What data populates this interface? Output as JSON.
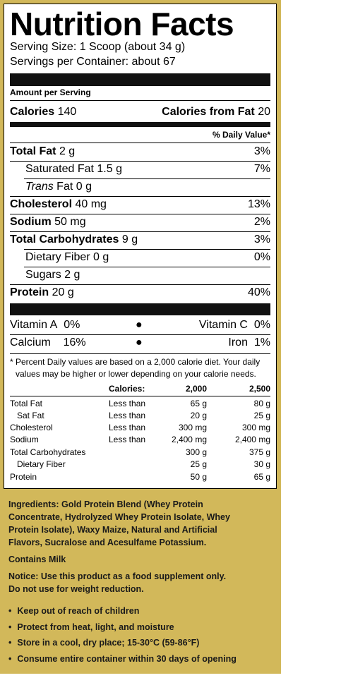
{
  "title": "Nutrition Facts",
  "serving_size": "Serving Size: 1 Scoop (about 34 g)",
  "servings_per_container": "Servings per Container: about 67",
  "amount_per_serving": "Amount per Serving",
  "calories": {
    "label": "Calories",
    "value": "140"
  },
  "calories_from_fat": {
    "label": "Calories from Fat",
    "value": "20"
  },
  "daily_value_header": "% Daily Value*",
  "nutrients": [
    {
      "name": "Total Fat",
      "amount": "2 g",
      "dv": "3%"
    },
    {
      "name": "Saturated Fat",
      "amount": "1.5 g",
      "dv": "7%"
    },
    {
      "name": "Trans",
      "name_suffix": "Fat 0 g",
      "amount": "",
      "dv": ""
    },
    {
      "name": "Cholesterol",
      "amount": "40 mg",
      "dv": "13%"
    },
    {
      "name": "Sodium",
      "amount": "50 mg",
      "dv": "2%"
    },
    {
      "name": "Total Carbohydrates",
      "amount": "9 g",
      "dv": "3%"
    },
    {
      "name": "Dietary Fiber",
      "amount": "0 g",
      "dv": "0%"
    },
    {
      "name": "Sugars",
      "amount": "2 g",
      "dv": ""
    },
    {
      "name": "Protein",
      "amount": "20 g",
      "dv": "40%"
    }
  ],
  "vitamins": [
    {
      "left_name": "Vitamin A",
      "left_value": "0%",
      "right_name": "Vitamin C",
      "right_value": "0%"
    },
    {
      "left_name": "Calcium",
      "left_value": "16%",
      "right_name": "Iron",
      "right_value": "1%"
    }
  ],
  "footnote": "* Percent Daily values are based on a 2,000 calorie diet. Your daily",
  "footnote2": "values may be higher or lower depending on your calorie needs.",
  "table": {
    "header": [
      "",
      "Calories:",
      "2,000",
      "2,500"
    ],
    "rows": [
      [
        "Total Fat",
        "Less than",
        "65 g",
        "80 g"
      ],
      [
        "Sat Fat",
        "Less than",
        "20 g",
        "25 g"
      ],
      [
        "Cholesterol",
        "Less than",
        "300 mg",
        "300 mg"
      ],
      [
        "Sodium",
        "Less than",
        "2,400 mg",
        "2,400 mg"
      ],
      [
        "Total Carbohydrates",
        "",
        "300 g",
        "375 g"
      ],
      [
        "Dietary Fiber",
        "",
        "25 g",
        "30 g"
      ],
      [
        "Protein",
        "",
        "50 g",
        "65 g"
      ]
    ]
  },
  "ingredients_lines": [
    "Ingredients: Gold Protein Blend (Whey Protein",
    "Concentrate, Hydrolyzed Whey Protein Isolate, Whey",
    "Protein Isolate),  Waxy Maize, Natural and Artificial",
    "Flavors, Sucralose and Acesulfame Potassium."
  ],
  "contains": "Contains Milk",
  "notice_lines": [
    "Notice: Use this product as a food supplement only.",
    "Do not use for weight reduction."
  ],
  "bullets": [
    "Keep out of reach of children",
    "Protect from heat, light, and moisture",
    "Store in a cool, dry place; 15-30°C (59-86°F)",
    "Consume entire container within 30 days of opening"
  ],
  "colors": {
    "panel_background": "#d2b85a",
    "bars": "#111111"
  }
}
